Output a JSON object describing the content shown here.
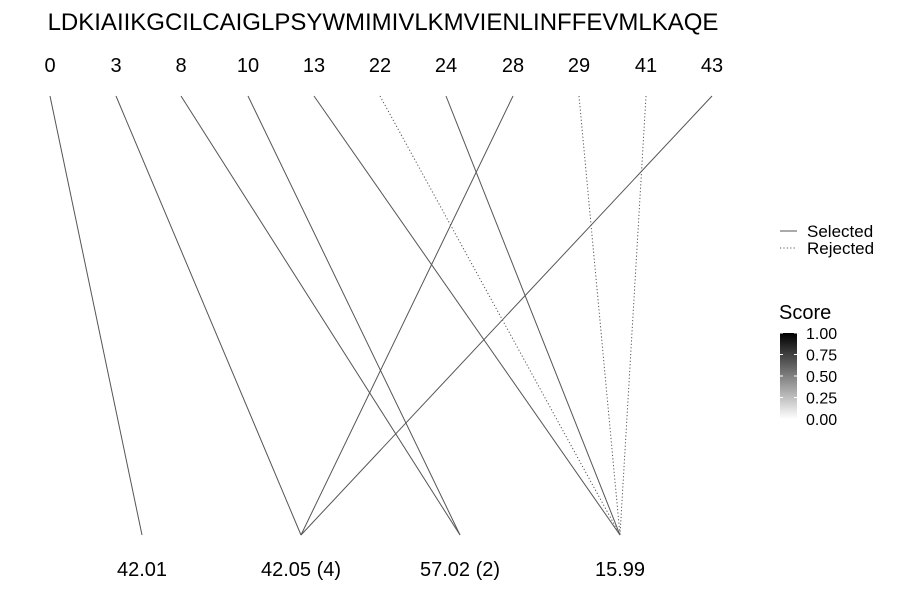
{
  "sequence": "LDKIAIIKGCILCAIGLPSYWMIMIVLKMVIENLINFFEVMLKAQE",
  "positions": [
    "0",
    "3",
    "8",
    "10",
    "13",
    "22",
    "24",
    "28",
    "29",
    "41",
    "43"
  ],
  "masses": [
    "42.01",
    "42.05 (4)",
    "57.02 (2)",
    "15.99"
  ],
  "connections": [
    {
      "from": 0,
      "to": 0,
      "status": "Selected"
    },
    {
      "from": 1,
      "to": 1,
      "status": "Selected"
    },
    {
      "from": 2,
      "to": 2,
      "status": "Selected"
    },
    {
      "from": 3,
      "to": 2,
      "status": "Selected"
    },
    {
      "from": 4,
      "to": 3,
      "status": "Selected"
    },
    {
      "from": 5,
      "to": 3,
      "status": "Rejected"
    },
    {
      "from": 6,
      "to": 3,
      "status": "Selected"
    },
    {
      "from": 7,
      "to": 1,
      "status": "Selected"
    },
    {
      "from": 8,
      "to": 3,
      "status": "Rejected"
    },
    {
      "from": 9,
      "to": 3,
      "status": "Rejected"
    },
    {
      "from": 10,
      "to": 1,
      "status": "Selected"
    }
  ],
  "legend": {
    "line_types": [
      {
        "label": "Selected",
        "dash": "solid"
      },
      {
        "label": "Rejected",
        "dash": "dotted"
      }
    ],
    "score": {
      "title": "Score",
      "ticks": [
        "1.00",
        "0.75",
        "0.50",
        "0.25",
        "0.00"
      ],
      "color_high": "#000000",
      "color_low": "#ffffff"
    }
  },
  "colors": {
    "line": "#555555",
    "text": "#000000"
  }
}
